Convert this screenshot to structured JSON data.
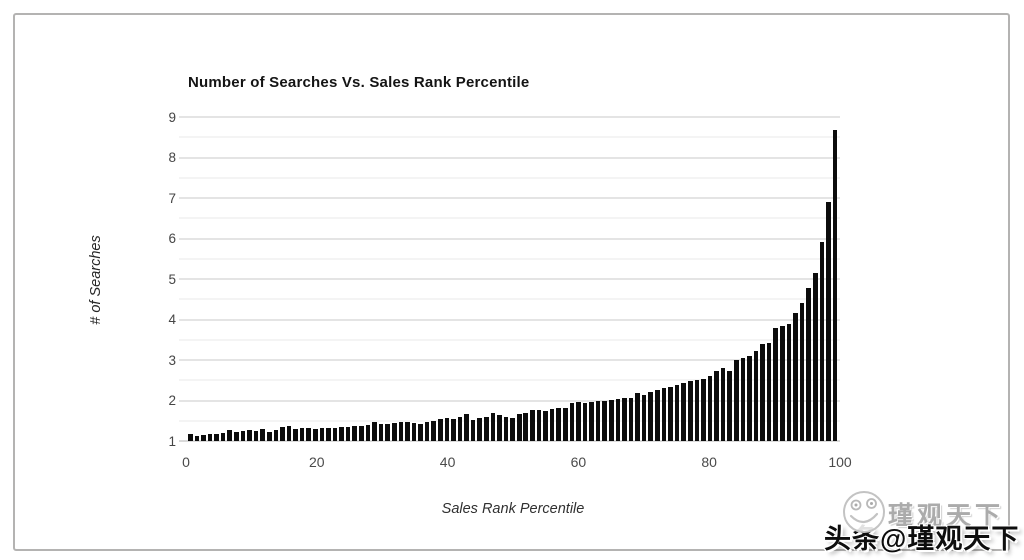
{
  "chart_data": {
    "type": "bar",
    "title": "Number of Searches Vs. Sales Rank Percentile",
    "xlabel": "Sales Rank Percentile",
    "ylabel": "# of Searches",
    "xlim": [
      0,
      100
    ],
    "ylim": [
      1,
      9
    ],
    "x_start": 1,
    "x_step": 1,
    "x_ticks": [
      0,
      20,
      40,
      60,
      80,
      100
    ],
    "y_ticks": [
      1,
      2,
      3,
      4,
      5,
      6,
      7,
      8,
      9
    ],
    "grid": {
      "minor_step": 0.5,
      "major_color": "#c9c9c9",
      "minor_color": "#eaeaea",
      "baseline_color": "#b3b3b3",
      "legend": "none"
    },
    "bar_color": "#0c0c0c",
    "values": [
      1.17,
      1.13,
      1.16,
      1.17,
      1.17,
      1.19,
      1.26,
      1.22,
      1.24,
      1.26,
      1.24,
      1.29,
      1.23,
      1.26,
      1.34,
      1.38,
      1.29,
      1.33,
      1.31,
      1.3,
      1.32,
      1.33,
      1.32,
      1.34,
      1.35,
      1.36,
      1.38,
      1.4,
      1.46,
      1.42,
      1.43,
      1.44,
      1.46,
      1.48,
      1.45,
      1.43,
      1.46,
      1.49,
      1.55,
      1.56,
      1.55,
      1.6,
      1.66,
      1.51,
      1.56,
      1.6,
      1.7,
      1.64,
      1.59,
      1.57,
      1.66,
      1.7,
      1.77,
      1.76,
      1.74,
      1.78,
      1.81,
      1.81,
      1.93,
      1.96,
      1.95,
      1.97,
      2.0,
      1.98,
      2.02,
      2.04,
      2.05,
      2.07,
      2.18,
      2.13,
      2.2,
      2.26,
      2.31,
      2.34,
      2.39,
      2.43,
      2.48,
      2.51,
      2.53,
      2.61,
      2.72,
      2.8,
      2.74,
      2.99,
      3.05,
      3.11,
      3.22,
      3.4,
      3.43,
      3.8,
      3.83,
      3.89,
      4.15,
      4.42,
      4.77,
      5.14,
      5.92,
      6.9,
      8.68
    ]
  },
  "watermark": {
    "main_text": "头条@瑾观天下",
    "ghost_text": "瑾观天下",
    "logo": "toutiao-smiley-logo"
  }
}
